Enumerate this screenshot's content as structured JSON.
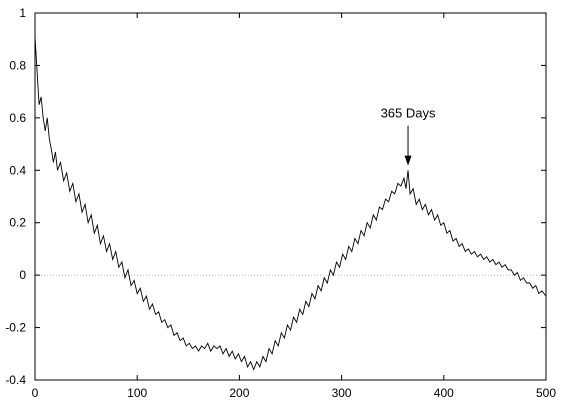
{
  "chart_data": {
    "type": "line",
    "title": "",
    "xlabel": "",
    "ylabel": "",
    "xlim": [
      0,
      500
    ],
    "ylim": [
      -0.4,
      1.0
    ],
    "x_ticks": [
      0,
      100,
      200,
      300,
      400,
      500
    ],
    "x_tick_labels": [
      "0",
      "100",
      "200",
      "300",
      "400",
      "500"
    ],
    "y_ticks": [
      -0.4,
      -0.2,
      0,
      0.2,
      0.4,
      0.6,
      0.8,
      1.0
    ],
    "y_tick_labels": [
      "-0.4",
      "-0.2",
      "0",
      "0.2",
      "0.4",
      "0.6",
      "0.8",
      "1"
    ],
    "zero_line": true,
    "grid": false,
    "series": [
      {
        "x": [
          0,
          2,
          4,
          6,
          8,
          10,
          12,
          14,
          16,
          18,
          20,
          22,
          25,
          28,
          31,
          34,
          37,
          40,
          43,
          46,
          49,
          52,
          55,
          58,
          61,
          64,
          67,
          70,
          73,
          76,
          79,
          82,
          85,
          88,
          91,
          94,
          97,
          100,
          103,
          106,
          109,
          112,
          115,
          118,
          121,
          124,
          127,
          130,
          133,
          136,
          139,
          142,
          145,
          148,
          151,
          154,
          157,
          160,
          163,
          166,
          169,
          172,
          175,
          178,
          181,
          184,
          187,
          190,
          193,
          196,
          199,
          202,
          205,
          208,
          211,
          214,
          217,
          220,
          223,
          226,
          229,
          232,
          235,
          238,
          241,
          244,
          247,
          250,
          253,
          256,
          259,
          262,
          265,
          268,
          271,
          274,
          277,
          280,
          283,
          286,
          289,
          292,
          295,
          298,
          301,
          304,
          307,
          310,
          313,
          316,
          319,
          322,
          325,
          328,
          331,
          334,
          337,
          340,
          343,
          346,
          349,
          352,
          355,
          358,
          361,
          363,
          365,
          367,
          370,
          373,
          376,
          379,
          382,
          385,
          388,
          391,
          394,
          397,
          400,
          403,
          406,
          409,
          412,
          415,
          418,
          421,
          424,
          427,
          430,
          433,
          436,
          439,
          442,
          445,
          448,
          451,
          454,
          457,
          460,
          463,
          466,
          469,
          472,
          475,
          478,
          481,
          484,
          487,
          490,
          493,
          496,
          500
        ],
        "y": [
          0.91,
          0.78,
          0.65,
          0.68,
          0.6,
          0.55,
          0.6,
          0.52,
          0.48,
          0.43,
          0.47,
          0.4,
          0.43,
          0.36,
          0.39,
          0.32,
          0.35,
          0.28,
          0.31,
          0.24,
          0.27,
          0.2,
          0.23,
          0.16,
          0.19,
          0.12,
          0.15,
          0.09,
          0.12,
          0.06,
          0.09,
          0.03,
          0.05,
          -0.01,
          0.02,
          -0.04,
          -0.02,
          -0.07,
          -0.05,
          -0.1,
          -0.08,
          -0.13,
          -0.11,
          -0.15,
          -0.14,
          -0.18,
          -0.17,
          -0.2,
          -0.19,
          -0.23,
          -0.22,
          -0.25,
          -0.24,
          -0.27,
          -0.26,
          -0.28,
          -0.27,
          -0.29,
          -0.27,
          -0.28,
          -0.26,
          -0.29,
          -0.27,
          -0.28,
          -0.27,
          -0.3,
          -0.28,
          -0.31,
          -0.29,
          -0.32,
          -0.3,
          -0.33,
          -0.31,
          -0.35,
          -0.33,
          -0.36,
          -0.33,
          -0.35,
          -0.31,
          -0.33,
          -0.28,
          -0.3,
          -0.25,
          -0.27,
          -0.22,
          -0.24,
          -0.19,
          -0.21,
          -0.16,
          -0.18,
          -0.13,
          -0.15,
          -0.1,
          -0.12,
          -0.07,
          -0.09,
          -0.04,
          -0.06,
          -0.01,
          -0.03,
          0.02,
          0.0,
          0.05,
          0.03,
          0.08,
          0.06,
          0.11,
          0.09,
          0.14,
          0.12,
          0.17,
          0.15,
          0.2,
          0.18,
          0.23,
          0.21,
          0.26,
          0.25,
          0.29,
          0.28,
          0.32,
          0.31,
          0.35,
          0.34,
          0.37,
          0.33,
          0.4,
          0.31,
          0.33,
          0.27,
          0.29,
          0.25,
          0.27,
          0.23,
          0.25,
          0.21,
          0.23,
          0.19,
          0.2,
          0.16,
          0.17,
          0.13,
          0.14,
          0.11,
          0.12,
          0.09,
          0.1,
          0.08,
          0.09,
          0.07,
          0.08,
          0.06,
          0.07,
          0.05,
          0.06,
          0.04,
          0.05,
          0.03,
          0.04,
          0.02,
          0.02,
          0.0,
          0.01,
          -0.02,
          -0.01,
          -0.03,
          -0.03,
          -0.05,
          -0.04,
          -0.07,
          -0.06,
          -0.08
        ]
      }
    ],
    "annotations": [
      {
        "text": "365 Days",
        "x": 365,
        "y": 0.41,
        "arrow": "down"
      }
    ]
  }
}
